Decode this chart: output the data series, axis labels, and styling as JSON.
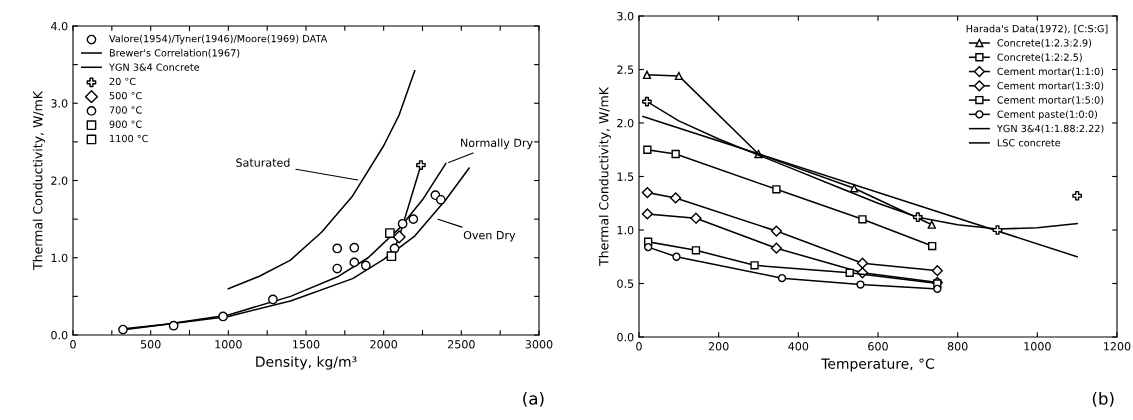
{
  "chart_data": [
    {
      "type": "line",
      "xlabel": "Density, kg/m³",
      "ylabel": "Thermal Conductivity, W/mK",
      "xlim": [
        0,
        3000
      ],
      "ylim": [
        0,
        4.0
      ],
      "xticks": [
        0,
        {
          "value": 250,
          "label": null
        },
        500,
        {
          "value": 750,
          "label": null
        },
        1000,
        {
          "value": 1250,
          "label": null
        },
        1500,
        {
          "value": 1750,
          "label": null
        },
        2000,
        {
          "value": 2250,
          "label": null
        },
        2500,
        {
          "value": 2750,
          "label": null
        },
        3000
      ],
      "yticks": [
        {
          "value": 0,
          "label": "0.0"
        },
        {
          "value": 0.5,
          "label": null
        },
        {
          "value": 1,
          "label": "1.0"
        },
        {
          "value": 1.5,
          "label": null
        },
        {
          "value": 2,
          "label": "2.0"
        },
        {
          "value": 2.5,
          "label": null
        },
        {
          "value": 3,
          "label": "3.0"
        },
        {
          "value": 3.5,
          "label": null
        },
        {
          "value": 4,
          "label": "4.0"
        }
      ],
      "grid": false,
      "legend": "top left",
      "line_style": "solid",
      "series": [
        {
          "name": "Valore(1954)/Tyner(1946)/Moore(1969) DATA",
          "type": "scatter",
          "marker": "circle",
          "color": "#000000",
          "x": [
            322,
            648,
            966,
            1287,
            1701,
            1701,
            1811,
            1811,
            1885,
            2122,
            2191,
            2333,
            2368
          ],
          "values": [
            0.07,
            0.12,
            0.24,
            0.46,
            0.86,
            1.12,
            1.13,
            0.94,
            0.9,
            1.44,
            1.5,
            1.81,
            1.75
          ]
        },
        {
          "name": "Brewer's Correlation(1967)",
          "marker": "none",
          "color": "#000000",
          "x": [
            330,
            600,
            1000,
            1400,
            1700,
            1900,
            2100,
            2250,
            2400
          ],
          "values": [
            0.08,
            0.14,
            0.26,
            0.5,
            0.75,
            1.0,
            1.38,
            1.75,
            2.22
          ]
        },
        {
          "marker": "none",
          "color": "#000000",
          "x": [
            1000,
            1200,
            1400,
            1600,
            1800,
            2000,
            2100,
            2200
          ],
          "values": [
            0.6,
            0.76,
            0.97,
            1.33,
            1.8,
            2.45,
            2.85,
            3.42
          ]
        },
        {
          "marker": "none",
          "color": "#000000",
          "x": [
            330,
            1000,
            1400,
            1800,
            2000,
            2200,
            2400,
            2550
          ],
          "values": [
            0.07,
            0.24,
            0.44,
            0.73,
            0.98,
            1.28,
            1.75,
            2.16
          ]
        },
        {
          "name": "YGN 3&4 Concrete",
          "marker": "none",
          "color": "#000000",
          "x": [
            2050,
            2070,
            2100,
            2240
          ],
          "values": [
            1.02,
            1.12,
            1.27,
            2.2
          ]
        },
        {
          "name": "20 °C",
          "type": "scatter",
          "marker": "cross",
          "color": "#000000",
          "x": [
            2240
          ],
          "values": [
            2.2
          ]
        },
        {
          "name": "500 °C",
          "type": "scatter",
          "marker": "diamond",
          "color": "#000000",
          "x": [
            2100
          ],
          "values": [
            1.27
          ]
        },
        {
          "name": "700 °C",
          "type": "scatter",
          "marker": "circle",
          "color": "#000000",
          "x": [
            2070
          ],
          "values": [
            1.12
          ]
        },
        {
          "name": "900 °C",
          "type": "scatter",
          "marker": "square",
          "color": "#000000",
          "x": [
            2050
          ],
          "values": [
            1.02
          ]
        },
        {
          "name": "1100 °C",
          "type": "scatter",
          "marker": "square",
          "color": "#000000",
          "x": [
            2040
          ],
          "values": [
            1.32
          ]
        }
      ],
      "annotations": [
        {
          "text": "Saturated",
          "x": 1851,
          "y": 2.0
        },
        {
          "text": "Normally Dry",
          "x": 2402,
          "y": 2.22
        },
        {
          "text": "Oven Dry",
          "x": 2333,
          "y": 1.51
        },
        "(a)"
      ]
    },
    {
      "type": "line",
      "xlabel": "Temperature, °C",
      "ylabel": "Thermal Conductivity, W/mK",
      "xlim": [
        0,
        1200
      ],
      "ylim": [
        0,
        3.0
      ],
      "xticks": [
        0,
        200,
        400,
        600,
        800,
        1000,
        1200
      ],
      "yticks": [
        {
          "value": 0,
          "label": "0.0"
        },
        0.5,
        {
          "value": 1,
          "label": "1.0"
        },
        1.5,
        {
          "value": 2,
          "label": "2.0"
        },
        2.5,
        {
          "value": 3,
          "label": "3.0"
        }
      ],
      "grid": false,
      "legend": "top right",
      "legend_title": "Harada's Data(1972), [C:S:G]",
      "line_style": "solid",
      "series": [
        {
          "name": "Concrete(1:2.3:2.9)",
          "marker": "triangle",
          "color": "#000000",
          "x": [
            20,
            100,
            300,
            540,
            735
          ],
          "values": [
            2.45,
            2.44,
            1.71,
            1.39,
            1.05
          ]
        },
        {
          "name": "Concrete(1:2:2.5)",
          "marker": "square",
          "color": "#000000",
          "x": [
            21,
            92,
            345,
            561,
            736
          ],
          "values": [
            1.75,
            1.71,
            1.38,
            1.1,
            0.85
          ]
        },
        {
          "name": "Cement mortar(1:1:0)",
          "marker": "diamond",
          "color": "#000000",
          "x": [
            21,
            92,
            345,
            561,
            749
          ],
          "values": [
            1.35,
            1.3,
            0.99,
            0.69,
            0.62
          ]
        },
        {
          "name": "Cement mortar(1:3:0)",
          "marker": "diamond",
          "color": "#000000",
          "x": [
            21,
            143,
            345,
            561,
            749
          ],
          "values": [
            1.15,
            1.11,
            0.83,
            0.6,
            0.51
          ]
        },
        {
          "name": "Cement mortar(1:5:0)",
          "marker": "square",
          "color": "#000000",
          "x": [
            23,
            143,
            290,
            529,
            749
          ],
          "values": [
            0.89,
            0.81,
            0.67,
            0.6,
            0.5
          ]
        },
        {
          "name": "Cement paste(1:0:0)",
          "marker": "circle",
          "color": "#000000",
          "x": [
            23,
            94,
            359,
            556,
            749
          ],
          "values": [
            0.84,
            0.75,
            0.55,
            0.49,
            0.45
          ]
        },
        {
          "name": "YGN 3&4(1:1.88:2.22)",
          "marker": "none",
          "color": "#000000",
          "x": [
            20,
            100,
            200,
            300,
            400,
            500,
            600,
            700,
            800,
            900,
            1000,
            1100
          ],
          "values": [
            2.2,
            2.02,
            1.85,
            1.7,
            1.55,
            1.4,
            1.25,
            1.12,
            1.05,
            1.01,
            1.02,
            1.06
          ]
        },
        {
          "type": "scatter",
          "marker": "cross",
          "color": "#000000",
          "x": [
            20,
            700,
            900,
            1100
          ],
          "values": [
            2.2,
            1.12,
            1.0,
            1.32
          ]
        },
        {
          "name": "LSC concrete",
          "marker": "none",
          "color": "#000000",
          "x": [
            10,
            1100
          ],
          "values": [
            2.06,
            0.75
          ]
        }
      ],
      "annotations": [
        "(b)"
      ]
    }
  ]
}
